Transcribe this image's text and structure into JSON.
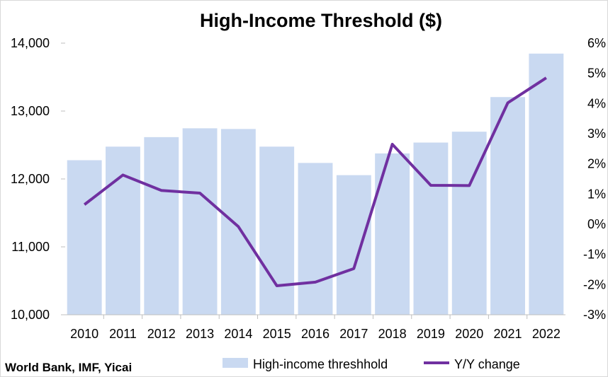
{
  "chart_data": {
    "type": "bar",
    "title": "High-Income Threshold ($)",
    "categories": [
      "2010",
      "2011",
      "2012",
      "2013",
      "2014",
      "2015",
      "2016",
      "2017",
      "2018",
      "2019",
      "2020",
      "2021",
      "2022"
    ],
    "series": [
      {
        "name": "High-income threshhold",
        "type": "bar",
        "axis": "left",
        "color": "#c9d9f1",
        "values": [
          12276,
          12476,
          12616,
          12746,
          12736,
          12476,
          12236,
          12056,
          12376,
          12536,
          12696,
          13206,
          13846
        ]
      },
      {
        "name": "Y/Y change",
        "type": "line",
        "axis": "right",
        "color": "#7030a0",
        "unit": "%",
        "values": [
          0.65,
          1.63,
          1.12,
          1.03,
          -0.08,
          -2.04,
          -1.92,
          -1.47,
          2.65,
          1.29,
          1.28,
          4.02,
          4.85
        ]
      }
    ],
    "y_left": {
      "min": 10000,
      "max": 14000,
      "ticks": [
        "10,000",
        "11,000",
        "12,000",
        "13,000",
        "14,000"
      ]
    },
    "y_right": {
      "min": -3,
      "max": 6,
      "ticks": [
        "-3%",
        "-2%",
        "-1%",
        "0%",
        "1%",
        "2%",
        "3%",
        "4%",
        "5%",
        "6%"
      ]
    },
    "grid": false,
    "legend_position": "bottom"
  },
  "source": "World Bank, IMF, Yicai"
}
